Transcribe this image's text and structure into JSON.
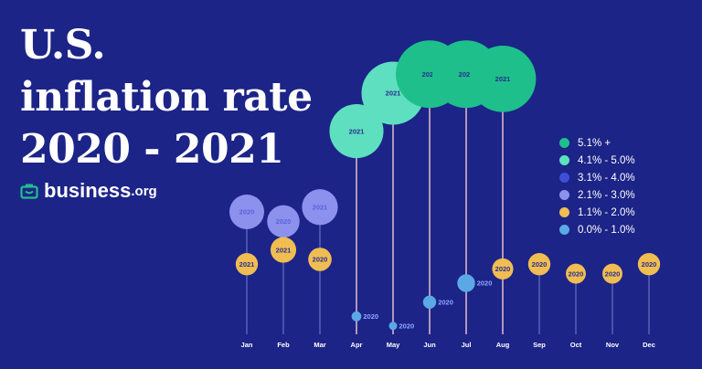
{
  "title_lines": [
    "U.S.",
    "inflation rate",
    "2020 - 2021"
  ],
  "logo": {
    "brand": "business",
    "tld": ".org"
  },
  "legend": [
    {
      "label": "5.1% +",
      "color": "#1fbf8c"
    },
    {
      "label": "4.1% - 5.0%",
      "color": "#5ee0c0"
    },
    {
      "label": "3.1% - 4.0%",
      "color": "#3f4fd9"
    },
    {
      "label": "2.1% - 3.0%",
      "color": "#8d91ee"
    },
    {
      "label": "1.1% - 2.0%",
      "color": "#efbd52"
    },
    {
      "label": "0.0% - 1.0%",
      "color": "#5aa9e6"
    }
  ],
  "chart_data": {
    "type": "scatter",
    "title": "U.S. inflation rate 2020 - 2021",
    "categories": [
      "Jan",
      "Feb",
      "Mar",
      "Apr",
      "May",
      "Jun",
      "Jul",
      "Aug",
      "Sep",
      "Oct",
      "Nov",
      "Dec"
    ],
    "series": [
      {
        "name": "2020",
        "values": [
          2.5,
          2.3,
          1.5,
          0.3,
          0.1,
          0.6,
          1.0,
          1.3,
          1.4,
          1.2,
          1.2,
          1.4
        ]
      },
      {
        "name": "2021",
        "values": [
          1.4,
          1.7,
          2.6,
          4.2,
          5.0,
          5.4,
          5.4,
          5.3,
          null,
          null,
          null,
          null
        ]
      }
    ],
    "ylim": [
      0,
      6
    ],
    "grid": false,
    "legend_position": "right"
  }
}
